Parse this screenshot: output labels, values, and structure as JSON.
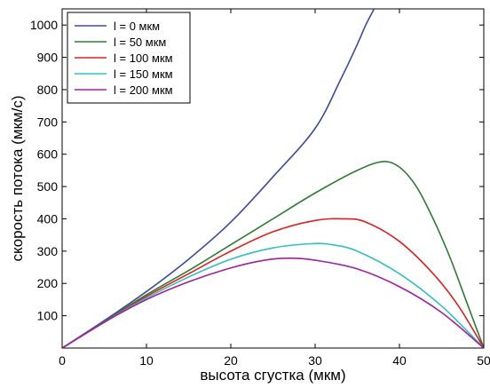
{
  "chart_data": {
    "type": "line",
    "xlabel": "высота сгустка (мкм)",
    "ylabel": "скорость потока (мкм/с)",
    "xlim": [
      0,
      50
    ],
    "ylim": [
      0,
      1050
    ],
    "x_ticks": [
      "0",
      "10",
      "20",
      "30",
      "40",
      "50"
    ],
    "y_ticks": [
      "100",
      "200",
      "300",
      "400",
      "500",
      "600",
      "700",
      "800",
      "900",
      "1000"
    ],
    "grid": false,
    "legend_position": "top-left",
    "series": [
      {
        "name": "l = 0 мкм",
        "color": "#3b4ba0",
        "x": [
          0,
          5,
          10,
          15,
          20,
          25,
          30,
          33,
          35,
          36,
          37
        ],
        "y": [
          0,
          85,
          175,
          275,
          390,
          530,
          680,
          830,
          940,
          1000,
          1050
        ]
      },
      {
        "name": "l = 50 мкм",
        "color": "#2e7d32",
        "x": [
          0,
          5,
          10,
          15,
          20,
          25,
          30,
          35,
          38,
          40,
          42,
          44,
          46,
          48,
          50
        ],
        "y": [
          0,
          82,
          165,
          240,
          320,
          400,
          480,
          550,
          577,
          560,
          500,
          400,
          280,
          140,
          0
        ]
      },
      {
        "name": "l = 100 мкм",
        "color": "#e02020",
        "x": [
          0,
          5,
          10,
          15,
          20,
          25,
          30,
          33.5,
          36,
          40,
          44,
          47,
          50
        ],
        "y": [
          0,
          80,
          160,
          230,
          300,
          360,
          395,
          400,
          390,
          330,
          230,
          130,
          0
        ]
      },
      {
        "name": "l = 150 мкм",
        "color": "#30c0c0",
        "x": [
          0,
          5,
          10,
          15,
          20,
          25,
          29.5,
          32,
          35,
          40,
          45,
          50
        ],
        "y": [
          0,
          80,
          155,
          220,
          275,
          310,
          323,
          320,
          300,
          230,
          130,
          0
        ]
      },
      {
        "name": "l = 200 мкм",
        "color": "#a020a0",
        "x": [
          0,
          5,
          10,
          15,
          20,
          24,
          27,
          30,
          35,
          40,
          45,
          50
        ],
        "y": [
          0,
          80,
          150,
          205,
          248,
          272,
          278,
          272,
          245,
          190,
          110,
          0
        ]
      }
    ]
  }
}
